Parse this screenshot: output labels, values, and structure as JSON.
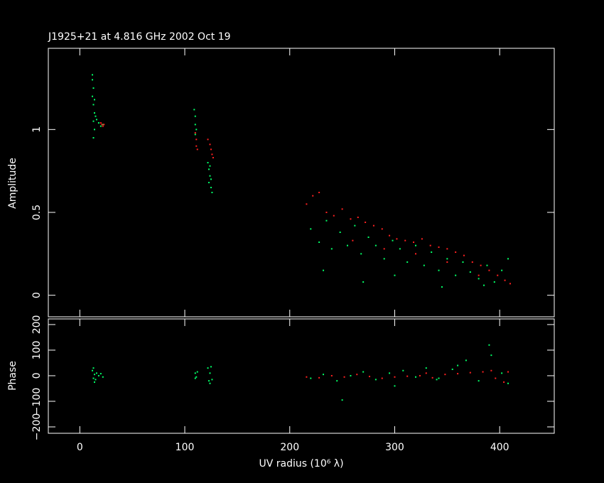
{
  "chart_data": [
    {
      "type": "scatter",
      "title": "J1925+21 at 4.816 GHz 2002 Oct 19",
      "y_label": "Amplitude",
      "xlim": [
        -30,
        452
      ],
      "ylim": [
        -0.13,
        1.49
      ],
      "xticks": [
        0,
        100,
        200,
        300,
        400
      ],
      "yticks": [
        0,
        0.5,
        1
      ],
      "series": [
        {
          "color": "#00ff66",
          "x": [
            12,
            13,
            12,
            13,
            14,
            13,
            14,
            13,
            15,
            16,
            18,
            20,
            22,
            12,
            14,
            109,
            110,
            110,
            111,
            110,
            122,
            123,
            124,
            123,
            125,
            126,
            124,
            125,
            220,
            228,
            235,
            240,
            248,
            255,
            262,
            268,
            275,
            282,
            290,
            298,
            305,
            312,
            320,
            328,
            335,
            342,
            350,
            358,
            365,
            372,
            380,
            388,
            395,
            402,
            408,
            232,
            270,
            300,
            345,
            385
          ],
          "values": [
            1.3,
            1.25,
            1.2,
            1.15,
            1.1,
            1.05,
            1.0,
            0.95,
            1.08,
            1.06,
            1.04,
            1.02,
            1.03,
            1.33,
            1.18,
            1.12,
            1.08,
            1.03,
            1.0,
            0.97,
            0.8,
            0.76,
            0.72,
            0.68,
            0.65,
            0.62,
            0.78,
            0.7,
            0.4,
            0.32,
            0.45,
            0.28,
            0.38,
            0.3,
            0.42,
            0.25,
            0.35,
            0.3,
            0.22,
            0.33,
            0.28,
            0.2,
            0.3,
            0.18,
            0.26,
            0.15,
            0.22,
            0.12,
            0.2,
            0.14,
            0.1,
            0.18,
            0.08,
            0.15,
            0.22,
            0.15,
            0.08,
            0.12,
            0.05,
            0.06
          ]
        },
        {
          "color": "#ff2020",
          "x": [
            20,
            21,
            22,
            23,
            110,
            111,
            111,
            112,
            122,
            124,
            125,
            126,
            127,
            216,
            222,
            228,
            235,
            242,
            250,
            258,
            265,
            272,
            280,
            288,
            295,
            302,
            310,
            318,
            326,
            334,
            342,
            350,
            358,
            366,
            374,
            382,
            390,
            398,
            405,
            410,
            260,
            290,
            320,
            350,
            380
          ],
          "values": [
            1.04,
            1.03,
            1.02,
            1.03,
            0.98,
            0.94,
            0.9,
            0.88,
            0.94,
            0.91,
            0.88,
            0.85,
            0.83,
            0.55,
            0.6,
            0.62,
            0.5,
            0.48,
            0.52,
            0.46,
            0.47,
            0.44,
            0.42,
            0.4,
            0.36,
            0.34,
            0.33,
            0.32,
            0.34,
            0.3,
            0.29,
            0.28,
            0.26,
            0.24,
            0.2,
            0.18,
            0.15,
            0.12,
            0.09,
            0.07,
            0.33,
            0.28,
            0.25,
            0.2,
            0.12
          ]
        }
      ]
    },
    {
      "type": "scatter",
      "x_label": "UV radius  (10⁶ λ)",
      "y_label": "Phase",
      "xlim": [
        -30,
        452
      ],
      "ylim": [
        -225,
        222
      ],
      "xticks": [
        0,
        100,
        200,
        300,
        400
      ],
      "yticks": [
        {
          "value": -200,
          "label": "−200"
        },
        {
          "value": -100,
          "label": "−100"
        },
        0,
        100,
        200
      ],
      "series": [
        {
          "color": "#00ff66",
          "x": [
            12,
            13,
            14,
            15,
            16,
            18,
            20,
            22,
            13,
            14,
            110,
            111,
            112,
            110,
            122,
            123,
            124,
            125,
            126,
            124,
            220,
            232,
            245,
            258,
            270,
            282,
            295,
            308,
            320,
            330,
            342,
            355,
            368,
            380,
            392,
            402,
            408,
            250,
            300,
            360,
            390,
            340
          ],
          "values": [
            20,
            -10,
            5,
            -15,
            10,
            0,
            8,
            -5,
            30,
            -25,
            10,
            -5,
            15,
            -10,
            30,
            -20,
            10,
            35,
            -15,
            -30,
            -10,
            5,
            -20,
            0,
            15,
            -15,
            10,
            20,
            -5,
            30,
            -10,
            25,
            60,
            -20,
            80,
            10,
            -30,
            -95,
            -40,
            40,
            120,
            -15
          ]
        },
        {
          "color": "#ff2020",
          "x": [
            216,
            228,
            240,
            252,
            264,
            276,
            288,
            300,
            312,
            324,
            336,
            348,
            360,
            372,
            384,
            396,
            404,
            408,
            392,
            330
          ],
          "values": [
            -5,
            -8,
            0,
            -5,
            5,
            -3,
            -10,
            -5,
            -2,
            0,
            -8,
            5,
            8,
            12,
            15,
            -10,
            -25,
            15,
            20,
            10
          ]
        }
      ]
    }
  ]
}
